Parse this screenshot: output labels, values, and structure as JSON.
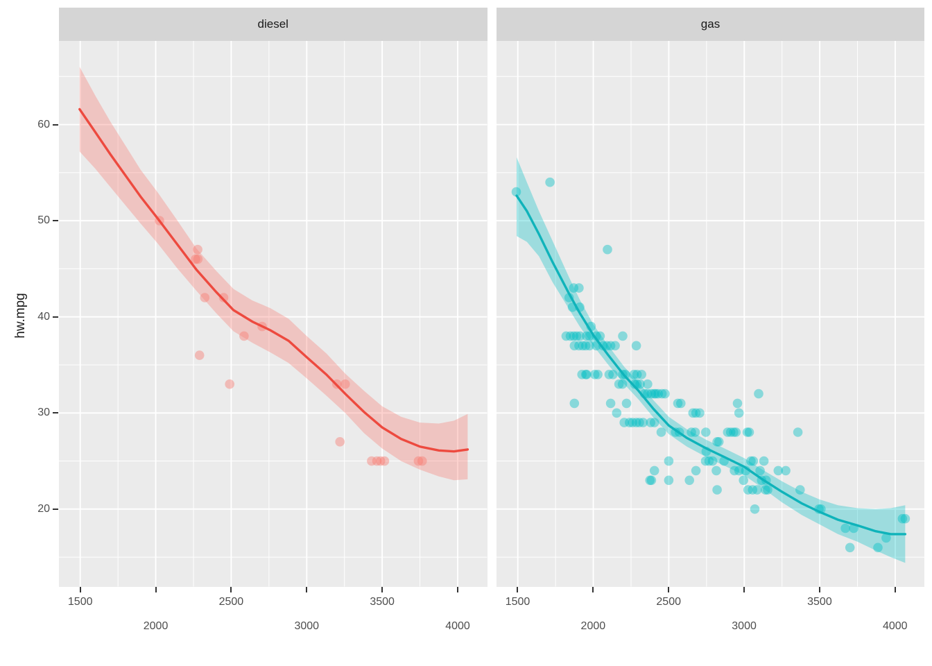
{
  "figure": {
    "kind": "ggplot2 faceted scatter plot with loess smooth and confidence bands",
    "background": "#ffffff",
    "panel_background": "#ebebeb",
    "strip_background": "#d5d5d5",
    "grid_color": "#ffffff",
    "tick_text_color": "#4d4d4d",
    "axis_title_color": "#1a1a1a"
  },
  "chart_data": {
    "type": "scatter",
    "title": "",
    "xlabel": "",
    "ylabel": "hw.mpg",
    "x_ticks": [
      1500,
      2000,
      2500,
      3000,
      3500,
      4000
    ],
    "y_ticks": [
      60,
      50,
      40,
      30,
      20
    ],
    "x_minor_ticks": [
      1750,
      2250,
      2750,
      3250,
      3750
    ],
    "y_minor_ticks": [
      15,
      25,
      35,
      45,
      55,
      65
    ],
    "xlim": [
      1359,
      4195
    ],
    "ylim": [
      11.9,
      68.7
    ],
    "grid": true,
    "legend_position": "none",
    "facets": [
      {
        "label": "diesel",
        "point_color": "#F8766D",
        "line_color": "#ed4a3f",
        "band_color": "#F8766D",
        "points": [
          [
            2025,
            50
          ],
          [
            2278,
            47
          ],
          [
            2264,
            46
          ],
          [
            2279,
            46
          ],
          [
            2290,
            36
          ],
          [
            2325,
            42
          ],
          [
            2450,
            42
          ],
          [
            2490,
            33
          ],
          [
            2585,
            38
          ],
          [
            2705,
            39
          ],
          [
            3220,
            27
          ],
          [
            3200,
            33
          ],
          [
            3255,
            33
          ],
          [
            3430,
            25
          ],
          [
            3465,
            25
          ],
          [
            3489,
            25
          ],
          [
            3515,
            25
          ],
          [
            3740,
            25
          ],
          [
            3765,
            25
          ]
        ],
        "smooth": [
          [
            1496,
            61.6
          ],
          [
            1600,
            59.2
          ],
          [
            1700,
            56.9
          ],
          [
            1800,
            54.7
          ],
          [
            1900,
            52.5
          ],
          [
            2015,
            50.2
          ],
          [
            2140,
            47.6
          ],
          [
            2270,
            44.9
          ],
          [
            2400,
            42.6
          ],
          [
            2515,
            40.7
          ],
          [
            2640,
            39.5
          ],
          [
            2760,
            38.6
          ],
          [
            2880,
            37.5
          ],
          [
            3000,
            35.8
          ],
          [
            3130,
            34.0
          ],
          [
            3255,
            32.0
          ],
          [
            3380,
            30.1
          ],
          [
            3500,
            28.5
          ],
          [
            3625,
            27.3
          ],
          [
            3750,
            26.5
          ],
          [
            3875,
            26.1
          ],
          [
            3975,
            26.0
          ],
          [
            4066,
            26.2
          ]
        ],
        "band_x": [
          1496,
          1600,
          1700,
          1800,
          1900,
          2015,
          2140,
          2270,
          2400,
          2515,
          2640,
          2760,
          2880,
          3000,
          3130,
          3255,
          3380,
          3500,
          3625,
          3750,
          3875,
          3975,
          4066
        ],
        "band_upper": [
          66.0,
          63.0,
          60.3,
          57.8,
          55.3,
          52.9,
          50.1,
          47.1,
          44.8,
          42.9,
          41.7,
          40.9,
          39.8,
          38.0,
          36.2,
          34.1,
          32.3,
          30.7,
          29.6,
          29.0,
          28.9,
          29.2,
          29.9
        ],
        "band_lower": [
          57.2,
          55.4,
          53.5,
          51.6,
          49.7,
          47.6,
          45.1,
          42.7,
          40.4,
          38.5,
          37.3,
          36.3,
          35.2,
          33.6,
          31.8,
          30.0,
          27.9,
          26.3,
          25.0,
          24.1,
          23.4,
          23.0,
          23.1
        ]
      },
      {
        "label": "gas",
        "point_color": "#00BFC4",
        "line_color": "#0fb3ba",
        "band_color": "#00BFC4",
        "points": [
          [
            1490,
            53
          ],
          [
            1713,
            54
          ],
          [
            2094,
            47
          ],
          [
            1870,
            43
          ],
          [
            1905,
            43
          ],
          [
            1840,
            42
          ],
          [
            1862,
            41
          ],
          [
            1910,
            41
          ],
          [
            1985,
            39
          ],
          [
            1820,
            38
          ],
          [
            1848,
            38
          ],
          [
            1870,
            38
          ],
          [
            1890,
            38
          ],
          [
            1912,
            38
          ],
          [
            1955,
            38
          ],
          [
            1975,
            38
          ],
          [
            2020,
            38
          ],
          [
            2045,
            38
          ],
          [
            2195,
            38
          ],
          [
            1875,
            37
          ],
          [
            1905,
            37
          ],
          [
            1930,
            37
          ],
          [
            1950,
            37
          ],
          [
            1975,
            37
          ],
          [
            2020,
            37
          ],
          [
            2065,
            37
          ],
          [
            2090,
            37
          ],
          [
            2115,
            37
          ],
          [
            2145,
            37
          ],
          [
            2285,
            37
          ],
          [
            1925,
            34
          ],
          [
            1950,
            34
          ],
          [
            1956,
            34
          ],
          [
            2010,
            34
          ],
          [
            2030,
            34
          ],
          [
            2105,
            34
          ],
          [
            2130,
            34
          ],
          [
            2195,
            34
          ],
          [
            2212,
            34
          ],
          [
            2270,
            34
          ],
          [
            2290,
            34
          ],
          [
            2320,
            34
          ],
          [
            2170,
            33
          ],
          [
            2193,
            33
          ],
          [
            2275,
            33
          ],
          [
            2290,
            33
          ],
          [
            2310,
            33
          ],
          [
            2360,
            33
          ],
          [
            2340,
            32
          ],
          [
            2360,
            32
          ],
          [
            2385,
            32
          ],
          [
            2403,
            32
          ],
          [
            2414,
            32
          ],
          [
            2430,
            32
          ],
          [
            2455,
            32
          ],
          [
            2475,
            32
          ],
          [
            3095,
            32
          ],
          [
            1875,
            31
          ],
          [
            2115,
            31
          ],
          [
            2220,
            31
          ],
          [
            2560,
            31
          ],
          [
            2580,
            31
          ],
          [
            2955,
            31
          ],
          [
            2155,
            30
          ],
          [
            2660,
            30
          ],
          [
            2680,
            30
          ],
          [
            2705,
            30
          ],
          [
            2965,
            30
          ],
          [
            2205,
            29
          ],
          [
            2240,
            29
          ],
          [
            2260,
            29
          ],
          [
            2285,
            29
          ],
          [
            2305,
            29
          ],
          [
            2330,
            29
          ],
          [
            2380,
            29
          ],
          [
            2405,
            29
          ],
          [
            2450,
            28
          ],
          [
            2545,
            28
          ],
          [
            2570,
            28
          ],
          [
            2650,
            28
          ],
          [
            2675,
            28
          ],
          [
            2745,
            28
          ],
          [
            2890,
            28
          ],
          [
            2910,
            28
          ],
          [
            2930,
            28
          ],
          [
            2945,
            28
          ],
          [
            3020,
            28
          ],
          [
            3033,
            28
          ],
          [
            3355,
            28
          ],
          [
            2820,
            27
          ],
          [
            2832,
            27
          ],
          [
            2748,
            26
          ],
          [
            2500,
            25
          ],
          [
            2744,
            25
          ],
          [
            2767,
            25
          ],
          [
            2790,
            25
          ],
          [
            2866,
            25
          ],
          [
            3044,
            25
          ],
          [
            3060,
            25
          ],
          [
            3130,
            25
          ],
          [
            2405,
            24
          ],
          [
            2680,
            24
          ],
          [
            2815,
            24
          ],
          [
            2935,
            24
          ],
          [
            2965,
            24
          ],
          [
            3010,
            24
          ],
          [
            3105,
            24
          ],
          [
            3225,
            24
          ],
          [
            3275,
            24
          ],
          [
            2375,
            23
          ],
          [
            2385,
            23
          ],
          [
            2500,
            23
          ],
          [
            2637,
            23
          ],
          [
            2995,
            23
          ],
          [
            3115,
            23
          ],
          [
            3145,
            23
          ],
          [
            2820,
            22
          ],
          [
            3025,
            22
          ],
          [
            3055,
            22
          ],
          [
            3085,
            22
          ],
          [
            3140,
            22
          ],
          [
            3155,
            22
          ],
          [
            3370,
            22
          ],
          [
            3070,
            20
          ],
          [
            3495,
            20
          ],
          [
            3508,
            20
          ],
          [
            4048,
            19
          ],
          [
            4066,
            19
          ],
          [
            3670,
            18
          ],
          [
            3725,
            18
          ],
          [
            3940,
            17
          ],
          [
            3700,
            16
          ],
          [
            3885,
            16
          ]
        ],
        "smooth": [
          [
            1492,
            52.6
          ],
          [
            1560,
            51.0
          ],
          [
            1640,
            48.6
          ],
          [
            1730,
            45.7
          ],
          [
            1840,
            42.4
          ],
          [
            1910,
            40.4
          ],
          [
            2000,
            38.1
          ],
          [
            2100,
            36.0
          ],
          [
            2205,
            33.9
          ],
          [
            2300,
            32.3
          ],
          [
            2400,
            30.4
          ],
          [
            2500,
            28.7
          ],
          [
            2620,
            27.4
          ],
          [
            2750,
            26.3
          ],
          [
            2870,
            25.4
          ],
          [
            3000,
            24.4
          ],
          [
            3120,
            23.1
          ],
          [
            3250,
            21.8
          ],
          [
            3380,
            20.6
          ],
          [
            3500,
            19.7
          ],
          [
            3620,
            18.9
          ],
          [
            3750,
            18.3
          ],
          [
            3870,
            17.7
          ],
          [
            3970,
            17.4
          ],
          [
            4066,
            17.4
          ]
        ],
        "band_x": [
          1492,
          1560,
          1640,
          1730,
          1840,
          1910,
          2000,
          2100,
          2205,
          2300,
          2400,
          2500,
          2620,
          2750,
          2870,
          3000,
          3120,
          3250,
          3380,
          3500,
          3620,
          3750,
          3870,
          3970,
          4066
        ],
        "band_upper": [
          56.6,
          54.0,
          51.0,
          47.9,
          44.1,
          41.8,
          39.2,
          37.0,
          34.8,
          33.2,
          31.3,
          29.6,
          28.3,
          27.2,
          26.3,
          25.3,
          24.1,
          22.9,
          21.8,
          21.0,
          20.4,
          20.1,
          20.0,
          20.1,
          20.4
        ],
        "band_lower": [
          48.4,
          47.8,
          46.3,
          43.6,
          40.8,
          39.0,
          37.0,
          35.0,
          33.0,
          31.4,
          29.5,
          27.8,
          26.5,
          25.4,
          24.5,
          23.5,
          22.2,
          20.7,
          19.4,
          18.4,
          17.4,
          16.6,
          15.7,
          15.0,
          14.4
        ]
      }
    ]
  }
}
